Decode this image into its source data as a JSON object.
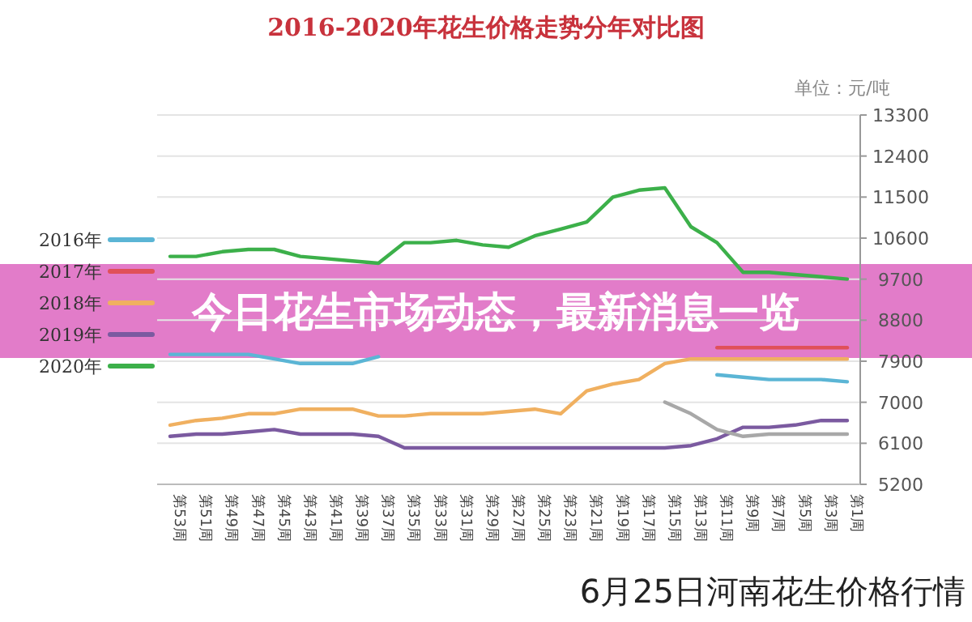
{
  "chart_data": {
    "type": "line",
    "title": "2016-2020年花生价格走势分年对比图",
    "ylabel": "单位：元/吨",
    "categories": [
      "第53周",
      "第51周",
      "第49周",
      "第47周",
      "第45周",
      "第43周",
      "第41周",
      "第39周",
      "第37周",
      "第35周",
      "第33周",
      "第31周",
      "第29周",
      "第27周",
      "第25周",
      "第23周",
      "第21周",
      "第19周",
      "第17周",
      "第15周",
      "第13周",
      "第11周",
      "第9周",
      "第7周",
      "第5周",
      "第3周",
      "第1周"
    ],
    "series": [
      {
        "name": "2016年",
        "color": "#5bb5d5",
        "values": [
          8050,
          8050,
          8050,
          8050,
          7950,
          7850,
          7850,
          7850,
          8000,
          null,
          null,
          null,
          null,
          null,
          null,
          null,
          null,
          null,
          null,
          null,
          null,
          7600,
          7550,
          7500,
          7500,
          7500,
          7450
        ]
      },
      {
        "name": "2017年",
        "color": "#e0505a",
        "values": [
          null,
          null,
          null,
          null,
          null,
          null,
          null,
          null,
          null,
          null,
          null,
          null,
          null,
          null,
          null,
          null,
          null,
          null,
          null,
          null,
          null,
          8200,
          8200,
          8200,
          8200,
          8200,
          8200
        ]
      },
      {
        "name": "2018年",
        "color": "#f0b060",
        "values": [
          6500,
          6600,
          6650,
          6750,
          6750,
          6850,
          6850,
          6850,
          6700,
          6700,
          6750,
          6750,
          6750,
          6800,
          6850,
          6750,
          7250,
          7400,
          7500,
          7850,
          7950,
          7950,
          7950,
          7950,
          7950,
          7950,
          7950
        ]
      },
      {
        "name": "2019年",
        "color": "#7b5aa0",
        "values": [
          6250,
          6300,
          6300,
          6350,
          6400,
          6300,
          6300,
          6300,
          6250,
          6000,
          6000,
          6000,
          6000,
          6000,
          6000,
          6000,
          6000,
          6000,
          6000,
          6000,
          6050,
          6200,
          6450,
          6450,
          6500,
          6600,
          6600
        ]
      },
      {
        "name": "2020年",
        "color": "#3cb04a",
        "values": [
          10200,
          10200,
          10300,
          10350,
          10350,
          10200,
          10150,
          10100,
          10050,
          10500,
          10500,
          10550,
          10450,
          10400,
          10650,
          10800,
          10950,
          11500,
          11650,
          11700,
          10850,
          10500,
          9850,
          9850,
          9800,
          9750,
          9700
        ]
      },
      {
        "color": "#a8a8a8",
        "values": [
          null,
          null,
          null,
          null,
          null,
          null,
          null,
          null,
          null,
          null,
          null,
          null,
          null,
          null,
          null,
          null,
          null,
          null,
          null,
          7000,
          6750,
          6400,
          6250,
          6300,
          6300,
          6300,
          6300
        ]
      }
    ],
    "ylim": [
      5200,
      13300
    ],
    "yticks": [
      5200,
      6100,
      7000,
      7900,
      8800,
      9700,
      10600,
      11500,
      12400,
      13300
    ],
    "grid": "y",
    "legend": "left",
    "marker": "none",
    "line_style": "solid",
    "annotations": [
      "今日花生市场动态，最新消息一览",
      "6月25日河南花生价格行情"
    ]
  }
}
